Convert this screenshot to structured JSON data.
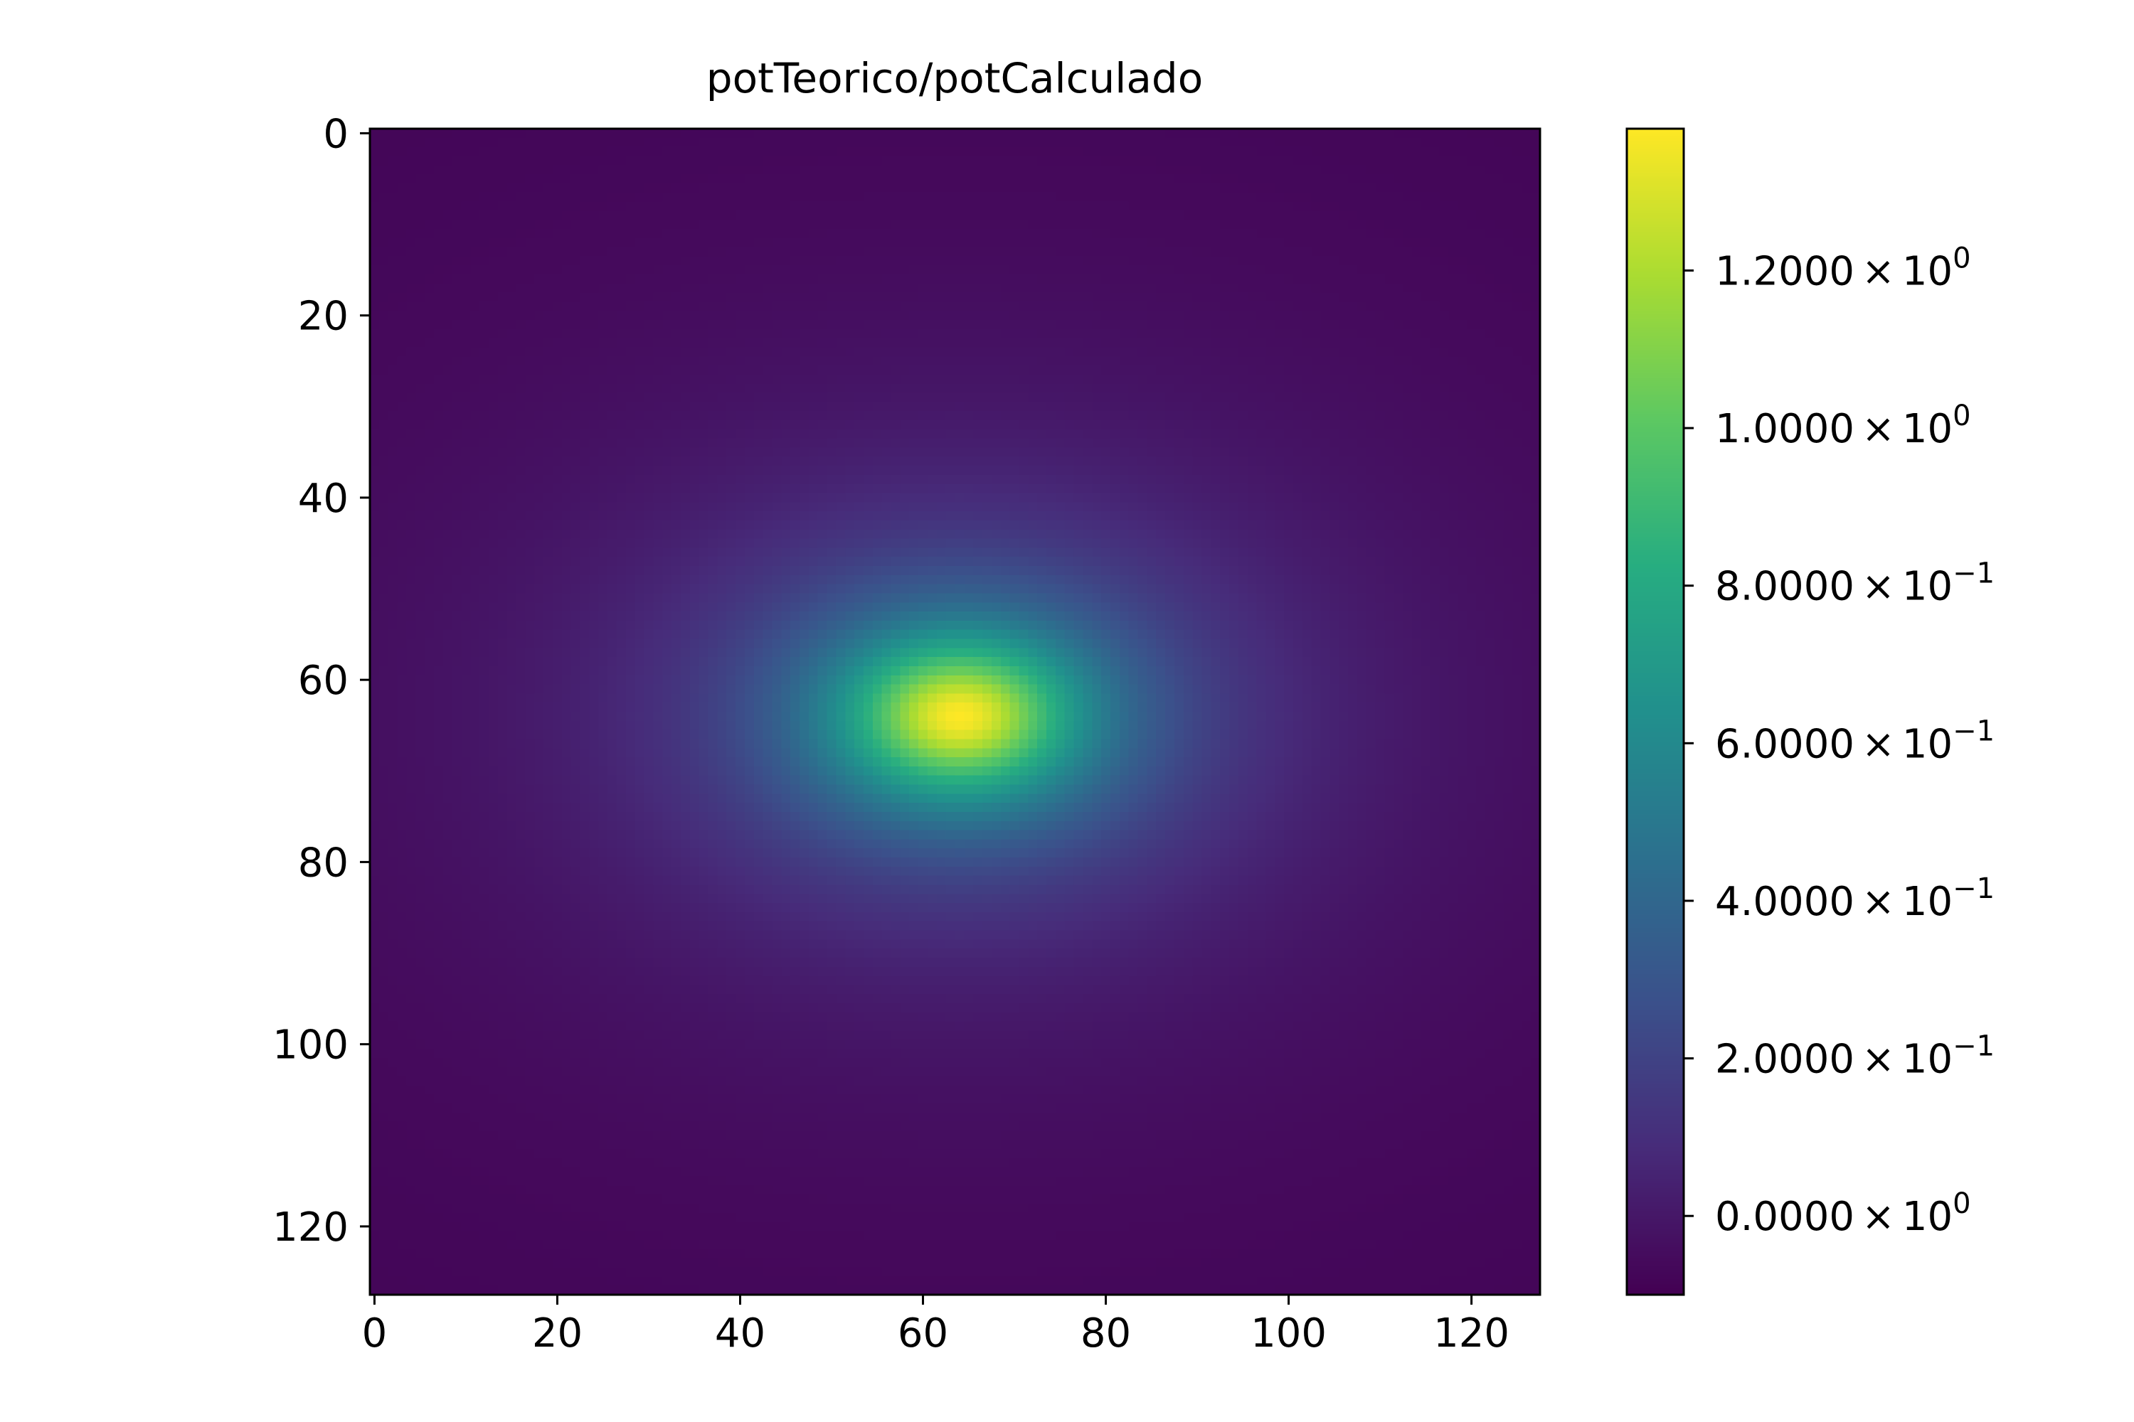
{
  "chart_data": {
    "type": "heatmap",
    "title": "potTeorico/potCalculado",
    "xlabel": "",
    "ylabel": "",
    "colormap": "viridis",
    "grid": false,
    "shape": [
      128,
      128
    ],
    "xlim": [
      -0.5,
      127.5
    ],
    "ylim": [
      127.5,
      -0.5
    ],
    "x_ticks": [
      0,
      20,
      40,
      60,
      80,
      100,
      120
    ],
    "y_ticks": [
      0,
      20,
      40,
      60,
      80,
      100,
      120
    ],
    "x_tick_labels": [
      "0",
      "20",
      "40",
      "60",
      "80",
      "100",
      "120"
    ],
    "y_tick_labels": [
      "0",
      "20",
      "40",
      "60",
      "80",
      "100",
      "120"
    ],
    "peak": {
      "x": 64,
      "y": 64,
      "value": 1.38
    },
    "background_value": -0.1,
    "colorbar": {
      "vmin": -0.1,
      "vmax": 1.38,
      "ticks": [
        {
          "value": 1.2,
          "mantissa": "1.2000",
          "exponent": "0"
        },
        {
          "value": 1.0,
          "mantissa": "1.0000",
          "exponent": "0"
        },
        {
          "value": 0.8,
          "mantissa": "8.0000",
          "exponent": "−1"
        },
        {
          "value": 0.6,
          "mantissa": "6.0000",
          "exponent": "−1"
        },
        {
          "value": 0.4,
          "mantissa": "4.0000",
          "exponent": "−1"
        },
        {
          "value": 0.2,
          "mantissa": "2.0000",
          "exponent": "−1"
        },
        {
          "value": 0.0,
          "mantissa": "0.0000",
          "exponent": "0"
        }
      ],
      "times_sign": "×",
      "base": "10"
    }
  }
}
